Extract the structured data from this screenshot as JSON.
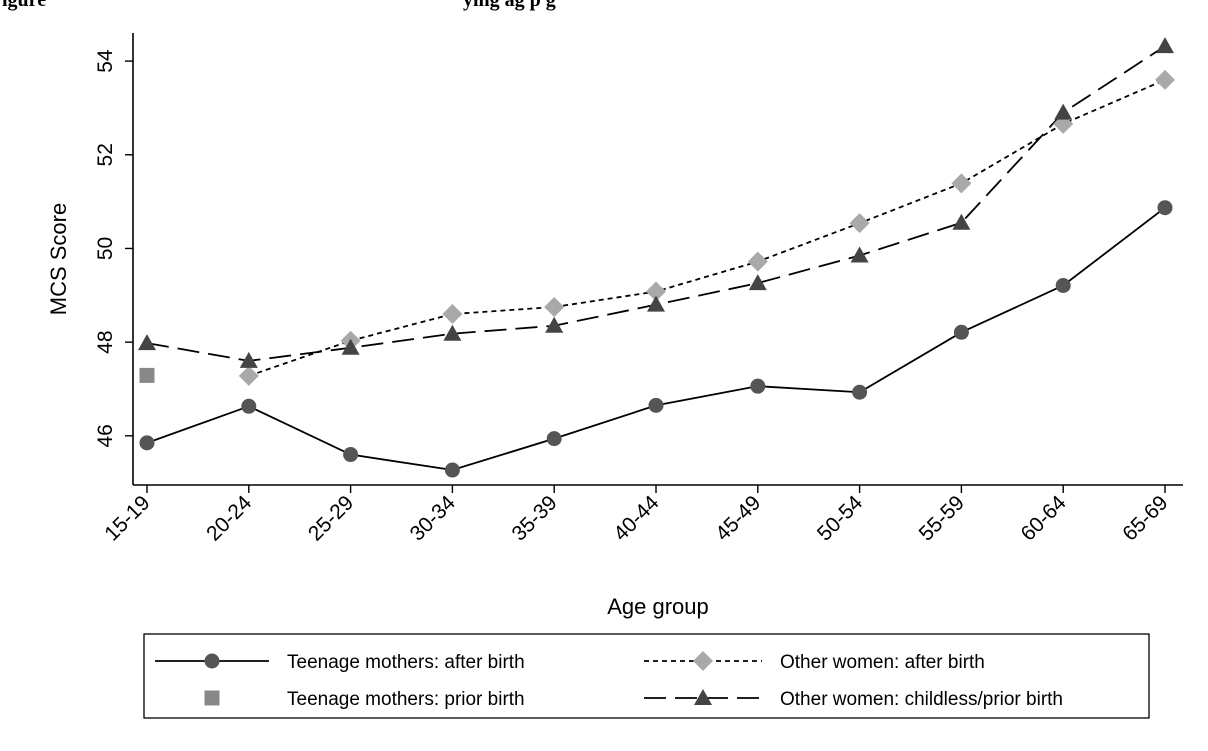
{
  "figure_title": {
    "left_fragment": "igure",
    "right_fragment": "ying ag   p     g"
  },
  "chart_data": {
    "type": "line",
    "xlabel": "Age group",
    "ylabel": "MCS Score",
    "categories": [
      "15-19",
      "20-24",
      "25-29",
      "30-34",
      "35-39",
      "40-44",
      "45-49",
      "50-54",
      "55-59",
      "60-64",
      "65-69"
    ],
    "ylim": [
      44.95,
      54.6
    ],
    "yticks": [
      46,
      48,
      50,
      52,
      54
    ],
    "grid": false,
    "legend_position": "bottom",
    "series": [
      {
        "name": "Teenage mothers: after birth",
        "marker": "circle",
        "line": "solid",
        "color": "#555555",
        "line_color": "#000000",
        "values": [
          45.85,
          46.63,
          45.6,
          45.27,
          45.94,
          46.65,
          47.06,
          46.93,
          48.21,
          49.21,
          50.87
        ]
      },
      {
        "name": "Teenage mothers: prior birth",
        "marker": "square",
        "line": "none",
        "color": "#888888",
        "line_color": "#888888",
        "values": [
          47.29,
          null,
          null,
          null,
          null,
          null,
          null,
          null,
          null,
          null,
          null
        ]
      },
      {
        "name": "Other women: after birth",
        "marker": "diamond",
        "line": "dotted",
        "color": "#a9a9a9",
        "line_color": "#000000",
        "values": [
          null,
          47.28,
          48.03,
          48.6,
          48.75,
          49.08,
          49.72,
          50.54,
          51.39,
          52.66,
          53.6
        ]
      },
      {
        "name": "Other women: childless/prior birth",
        "marker": "triangle",
        "line": "longdash",
        "color": "#444444",
        "line_color": "#000000",
        "values": [
          47.98,
          47.6,
          47.88,
          48.18,
          48.35,
          48.8,
          49.26,
          49.85,
          50.55,
          52.9,
          54.32
        ]
      }
    ]
  }
}
